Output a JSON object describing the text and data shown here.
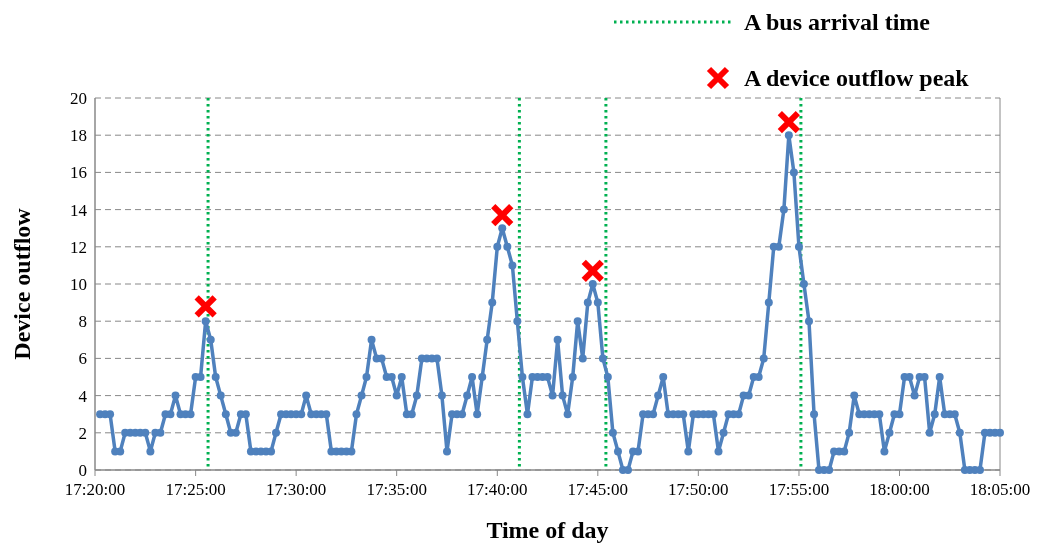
{
  "chart_data": {
    "type": "line",
    "xlabel": "Time of day",
    "ylabel": "Device outflow",
    "xlim": [
      17.3333,
      18.0833
    ],
    "xticks": [
      {
        "value": 17.3333,
        "label": "17:20:00"
      },
      {
        "value": 17.4167,
        "label": "17:25:00"
      },
      {
        "value": 17.5,
        "label": "17:30:00"
      },
      {
        "value": 17.5833,
        "label": "17:35:00"
      },
      {
        "value": 17.6667,
        "label": "17:40:00"
      },
      {
        "value": 17.75,
        "label": "17:45:00"
      },
      {
        "value": 17.8333,
        "label": "17:50:00"
      },
      {
        "value": 17.9167,
        "label": "17:55:00"
      },
      {
        "value": 18.0,
        "label": "18:00:00"
      },
      {
        "value": 18.0833,
        "label": "18:05:00"
      }
    ],
    "ylim": [
      0,
      20
    ],
    "yticks": [
      0,
      2,
      4,
      6,
      8,
      10,
      12,
      14,
      16,
      18,
      20
    ],
    "grid": "y",
    "legend": "top right",
    "x": [
      17.3375,
      17.3417,
      17.3458,
      17.35,
      17.3542,
      17.3583,
      17.3625,
      17.3667,
      17.3708,
      17.375,
      17.3792,
      17.3833,
      17.3875,
      17.3917,
      17.3958,
      17.4,
      17.4042,
      17.4083,
      17.4125,
      17.4167,
      17.4208,
      17.425,
      17.4292,
      17.4333,
      17.4375,
      17.4417,
      17.4458,
      17.45,
      17.4542,
      17.4583,
      17.4625,
      17.4667,
      17.4708,
      17.475,
      17.4792,
      17.4833,
      17.4875,
      17.4917,
      17.4958,
      17.5,
      17.5042,
      17.5083,
      17.5125,
      17.5167,
      17.5208,
      17.525,
      17.5292,
      17.5333,
      17.5375,
      17.5417,
      17.5458,
      17.55,
      17.5542,
      17.5583,
      17.5625,
      17.5667,
      17.5708,
      17.575,
      17.5792,
      17.5833,
      17.5875,
      17.5917,
      17.5958,
      17.6,
      17.6042,
      17.6083,
      17.6125,
      17.6167,
      17.6208,
      17.625,
      17.6292,
      17.6333,
      17.6375,
      17.6417,
      17.6458,
      17.65,
      17.6542,
      17.6583,
      17.6625,
      17.6667,
      17.6708,
      17.675,
      17.6792,
      17.6833,
      17.6875,
      17.6917,
      17.6958,
      17.7,
      17.7042,
      17.7083,
      17.7125,
      17.7167,
      17.7208,
      17.725,
      17.7292,
      17.7333,
      17.7375,
      17.7417,
      17.7458,
      17.75,
      17.7542,
      17.7583,
      17.7625,
      17.7667,
      17.7708,
      17.775,
      17.7792,
      17.7833,
      17.7875,
      17.7917,
      17.7958,
      17.8,
      17.8042,
      17.8083,
      17.8125,
      17.8167,
      17.8208,
      17.825,
      17.8292,
      17.8333,
      17.8375,
      17.8417,
      17.8458,
      17.85,
      17.8542,
      17.8583,
      17.8625,
      17.8667,
      17.8708,
      17.875,
      17.8792,
      17.8833,
      17.8875,
      17.8917,
      17.8958,
      17.9,
      17.9042,
      17.9083,
      17.9125,
      17.9167,
      17.9208,
      17.925,
      17.9292,
      17.9333,
      17.9375,
      17.9417,
      17.9458,
      17.95,
      17.9542,
      17.9583,
      17.9625,
      17.9667,
      17.9708,
      17.975,
      17.9792,
      17.9833,
      17.9875,
      17.9917,
      17.9958,
      18.0,
      18.0042,
      18.0083,
      18.0125,
      18.0167,
      18.0208,
      18.025,
      18.0292,
      18.0333,
      18.0375,
      18.0417,
      18.0458,
      18.05,
      18.0542,
      18.0583,
      18.0625,
      18.0667,
      18.0708,
      18.075,
      18.0792,
      18.0833
    ],
    "series": [
      {
        "color": "#4f81bd",
        "marker": "circle",
        "line_style": "solid",
        "values": [
          3,
          3,
          3,
          1,
          1,
          2,
          2,
          2,
          2,
          2,
          1,
          2,
          2,
          3,
          3,
          4,
          3,
          3,
          3,
          5,
          5,
          8,
          7,
          5,
          4,
          3,
          2,
          2,
          3,
          3,
          1,
          1,
          1,
          1,
          1,
          2,
          3,
          3,
          3,
          3,
          3,
          4,
          3,
          3,
          3,
          3,
          1,
          1,
          1,
          1,
          1,
          3,
          4,
          5,
          7,
          6,
          6,
          5,
          5,
          4,
          5,
          3,
          3,
          4,
          6,
          6,
          6,
          6,
          4,
          1,
          3,
          3,
          3,
          4,
          5,
          3,
          5,
          7,
          9,
          12,
          13,
          12,
          11,
          8,
          5,
          3,
          5,
          5,
          5,
          5,
          4,
          7,
          4,
          3,
          5,
          8,
          6,
          9,
          10,
          9,
          6,
          5,
          2,
          1,
          0,
          0,
          1,
          1,
          3,
          3,
          3,
          4,
          5,
          3,
          3,
          3,
          3,
          1,
          3,
          3,
          3,
          3,
          3,
          1,
          2,
          3,
          3,
          3,
          4,
          4,
          5,
          5,
          6,
          9,
          12,
          12,
          14,
          18,
          16,
          12,
          10,
          8,
          3,
          0,
          0,
          0,
          1,
          1,
          1,
          2,
          4,
          3,
          3,
          3,
          3,
          3,
          1,
          2,
          3,
          3,
          5,
          5,
          4,
          5,
          5,
          2,
          3,
          5,
          3,
          3,
          3,
          2,
          0,
          0,
          0,
          0,
          2,
          2,
          2,
          2
        ]
      },
      {
        "type": "scatter",
        "name": "A device outflow peak",
        "color": "#ff0000",
        "marker": "cross",
        "x": [
          17.425,
          17.6708,
          17.7458,
          17.9083
        ],
        "values": [
          8.8,
          13.7,
          10.7,
          18.7
        ]
      }
    ],
    "ref_lines": [
      {
        "axis": "x",
        "value": 17.427,
        "label": "A bus arrival time",
        "color": "#00b050",
        "line_style": "dotted"
      },
      {
        "axis": "x",
        "value": 17.685,
        "color": "#00b050",
        "line_style": "dotted"
      },
      {
        "axis": "x",
        "value": 17.7567,
        "color": "#00b050",
        "line_style": "dotted"
      },
      {
        "axis": "x",
        "value": 17.9183,
        "color": "#00b050",
        "line_style": "dotted"
      }
    ]
  }
}
